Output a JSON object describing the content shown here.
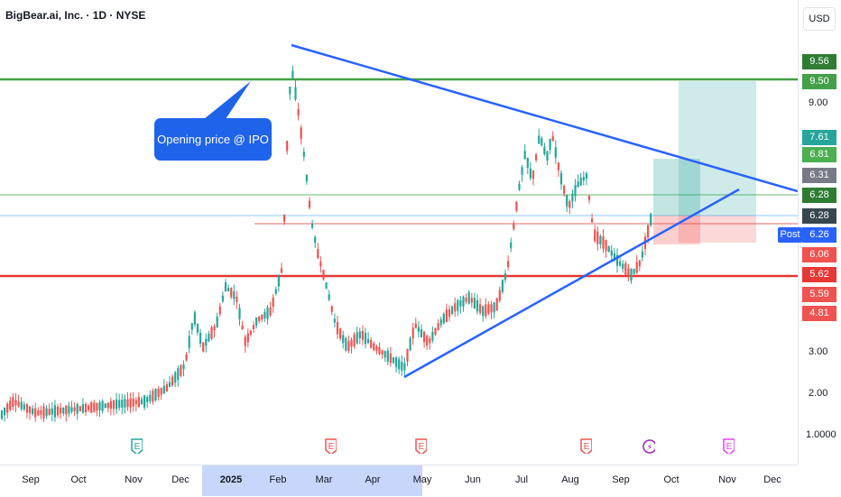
{
  "header": {
    "title": "BigBear.ai, Inc. · 1D · NYSE",
    "currency": "USD"
  },
  "callout": {
    "text": "Opening price @ IPO"
  },
  "price_axis": {
    "ticks": [
      "9.00",
      "3.00",
      "2.00",
      "1.0000"
    ],
    "labels": [
      {
        "text": "9.56",
        "color": "#2e7d32"
      },
      {
        "text": "9.50",
        "color": "#43a047"
      },
      {
        "text": "7.61",
        "color": "#26a69a"
      },
      {
        "text": "6.81",
        "color": "#4caf50"
      },
      {
        "text": "6.31",
        "color": "#787b86"
      },
      {
        "text": "6.28",
        "color": "#2e7d32"
      },
      {
        "text": "6.28",
        "color": "#37474f"
      },
      {
        "text": "6.26",
        "color": "#2962ff"
      },
      {
        "text": "6.06",
        "color": "#ef5350"
      },
      {
        "text": "5.62",
        "color": "#e53935"
      },
      {
        "text": "5.59",
        "color": "#ef5350"
      },
      {
        "text": "4.81",
        "color": "#ef5350"
      }
    ],
    "post_label": "Post"
  },
  "time_axis": {
    "labels": [
      "Sep",
      "Oct",
      "Nov",
      "Dec",
      "2025",
      "Feb",
      "Mar",
      "Apr",
      "May",
      "Jun",
      "Jul",
      "Aug",
      "Sep",
      "Oct",
      "Nov",
      "Dec"
    ]
  },
  "events": [
    {
      "icon": "earnings-icon",
      "text": "E"
    },
    {
      "icon": "earnings-icon",
      "text": "E"
    },
    {
      "icon": "earnings-icon",
      "text": "E"
    },
    {
      "icon": "earnings-icon",
      "text": "E"
    },
    {
      "icon": "dividend-flash-icon",
      "text": "⚡"
    },
    {
      "icon": "earnings-icon",
      "text": "E"
    }
  ],
  "colors": {
    "up": "#26a69a",
    "down": "#ef5350",
    "trend": "#2962ff",
    "resistance": "#43a047",
    "support": "#e53935"
  }
}
